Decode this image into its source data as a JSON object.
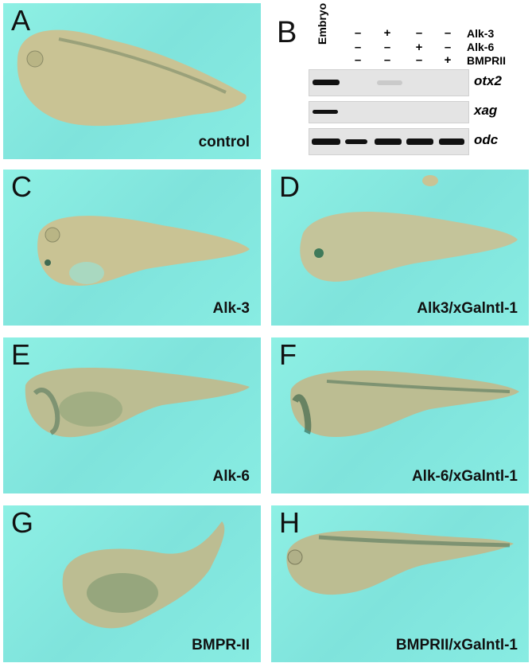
{
  "panels": [
    {
      "label": "A",
      "caption": "control"
    },
    {
      "label": "C",
      "caption": "Alk-3"
    },
    {
      "label": "D",
      "caption": "Alk3/xGalntl-1"
    },
    {
      "label": "E",
      "caption": "Alk-6"
    },
    {
      "label": "F",
      "caption": "Alk-6/xGalntl-1"
    },
    {
      "label": "G",
      "caption": "BMPR-II"
    },
    {
      "label": "H",
      "caption": "BMPRII/xGalntl-1"
    }
  ],
  "gel": {
    "label": "B",
    "lane_header": "Embryo",
    "conditions": [
      {
        "name": "Alk-3",
        "signs": [
          "–",
          "+",
          "–",
          "–"
        ]
      },
      {
        "name": "Alk-6",
        "signs": [
          "–",
          "–",
          "+",
          "–"
        ]
      },
      {
        "name": "BMPRII",
        "signs": [
          "–",
          "–",
          "–",
          "+"
        ]
      }
    ],
    "genes": [
      "otx2",
      "xag",
      "odc"
    ]
  },
  "colors": {
    "background": "#84e8df",
    "embryo": "#c9c394",
    "pigment": "#3f6a52"
  }
}
